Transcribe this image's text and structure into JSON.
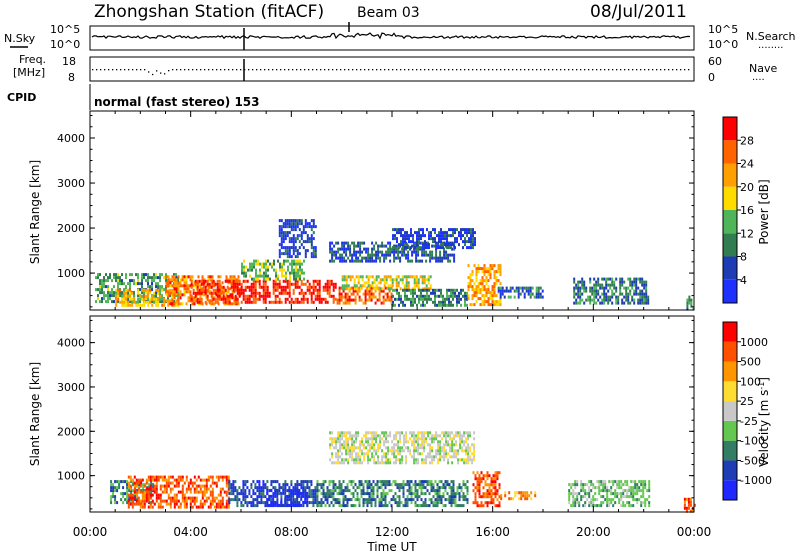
{
  "header": {
    "title": "Zhongshan Station (fitACF)",
    "beam": "Beam 03",
    "date": "08/Jul/2011"
  },
  "noise_panel": {
    "left_label": "N.Sky",
    "right_label": "N.Search",
    "top_tick": "10^5",
    "bottom_tick": "10^0",
    "right_legend": "........"
  },
  "freq_panel": {
    "left_label_1": "Freq.",
    "left_label_2": "[MHz]",
    "left_ticks": [
      "18",
      "8"
    ],
    "right_label": "Nave",
    "right_ticks": [
      "60",
      "0"
    ],
    "right_legend": "...."
  },
  "cpid": {
    "label": "CPID",
    "text": "normal (fast stereo) 153"
  },
  "colors": {
    "power": [
      "#1e32ff",
      "#1e3cb4",
      "#327d50",
      "#50b45a",
      "#ffdc00",
      "#ffa000",
      "#ff6400",
      "#ff0000"
    ],
    "velocity": [
      "#ff0000",
      "#ff5000",
      "#ff9600",
      "#ffdc32",
      "#c8c8c8",
      "#64c850",
      "#327d64",
      "#1e3cb4",
      "#1e28ff"
    ],
    "ground_scatter": "#c8c8c8"
  },
  "chart_data": [
    {
      "type": "heatmap",
      "name": "Power",
      "xlabel": "",
      "ylabel": "Slant Range [km]",
      "x_tick_labels": [
        "00:00",
        "04:00",
        "08:00",
        "12:00",
        "16:00",
        "20:00",
        "00:00"
      ],
      "x_ticks_hours": [
        0,
        4,
        8,
        12,
        16,
        20,
        24
      ],
      "xlim": [
        0,
        24
      ],
      "y_ticks": [
        1000,
        2000,
        3000,
        4000
      ],
      "ylim": [
        180,
        4600
      ],
      "colorbar_label": "Power [dB]",
      "colorbar_ticks": [
        "4",
        "8",
        "12",
        "16",
        "20",
        "24",
        "28"
      ],
      "colorbar_range": [
        0,
        32
      ],
      "regions": [
        {
          "t0": 0.2,
          "t1": 3.5,
          "r0": 400,
          "r1": 1000,
          "level": 12
        },
        {
          "t0": 1.0,
          "t1": 3.5,
          "r0": 300,
          "r1": 650,
          "level": 20
        },
        {
          "t0": 3.0,
          "t1": 6.0,
          "r0": 300,
          "r1": 950,
          "level": 24
        },
        {
          "t0": 4.0,
          "t1": 9.8,
          "r0": 350,
          "r1": 850,
          "level": 29
        },
        {
          "t0": 6.0,
          "t1": 8.5,
          "r0": 850,
          "r1": 1300,
          "level": 14
        },
        {
          "t0": 9.8,
          "t1": 12.0,
          "r0": 350,
          "r1": 700,
          "level": 26
        },
        {
          "t0": 10.0,
          "t1": 13.5,
          "r0": 650,
          "r1": 950,
          "level": 18
        },
        {
          "t0": 12.0,
          "t1": 15.0,
          "r0": 300,
          "r1": 650,
          "level": 10
        },
        {
          "t0": 15.0,
          "t1": 16.3,
          "r0": 300,
          "r1": 1200,
          "level": 22
        },
        {
          "t0": 9.5,
          "t1": 14.5,
          "r0": 1300,
          "r1": 1700,
          "level": 7
        },
        {
          "t0": 12.0,
          "t1": 15.3,
          "r0": 1600,
          "r1": 2000,
          "level": 5
        },
        {
          "t0": 7.5,
          "t1": 9.0,
          "r0": 1400,
          "r1": 2200,
          "level": 5
        },
        {
          "t0": 16.2,
          "t1": 18.0,
          "r0": 500,
          "r1": 700,
          "level": 8
        },
        {
          "t0": 19.2,
          "t1": 22.2,
          "r0": 350,
          "r1": 900,
          "level": 9
        },
        {
          "t0": 23.7,
          "t1": 24.0,
          "r0": 200,
          "r1": 500,
          "level": 12
        }
      ]
    },
    {
      "type": "heatmap",
      "name": "Velocity",
      "xlabel": "Time UT",
      "ylabel": "Slant Range [km]",
      "x_tick_labels": [
        "00:00",
        "04:00",
        "08:00",
        "12:00",
        "16:00",
        "20:00",
        "00:00"
      ],
      "x_ticks_hours": [
        0,
        4,
        8,
        12,
        16,
        20,
        24
      ],
      "xlim": [
        0,
        24
      ],
      "y_ticks": [
        1000,
        2000,
        3000,
        4000
      ],
      "ylim": [
        180,
        4600
      ],
      "colorbar_label": "Velocity [m s^-1]",
      "colorbar_ticks": [
        "1000",
        "500",
        "100",
        "25",
        "-25",
        "-100",
        "-500",
        "-1000"
      ],
      "regions": [
        {
          "t0": 0.8,
          "t1": 2.5,
          "r0": 400,
          "r1": 900,
          "cls": 6
        },
        {
          "t0": 1.5,
          "t1": 5.5,
          "r0": 300,
          "r1": 1000,
          "cls": 1
        },
        {
          "t0": 5.5,
          "t1": 9.0,
          "r0": 350,
          "r1": 900,
          "cls": 7
        },
        {
          "t0": 7.0,
          "t1": 8.6,
          "r0": 350,
          "r1": 700,
          "cls": 8
        },
        {
          "t0": 9.0,
          "t1": 15.0,
          "r0": 300,
          "r1": 900,
          "cls": 6
        },
        {
          "t0": 9.5,
          "t1": 15.3,
          "r0": 1300,
          "r1": 2000,
          "cls": 4
        },
        {
          "t0": 15.2,
          "t1": 16.3,
          "r0": 300,
          "r1": 1100,
          "cls": 1
        },
        {
          "t0": 16.3,
          "t1": 17.7,
          "r0": 450,
          "r1": 650,
          "cls": 2
        },
        {
          "t0": 19.0,
          "t1": 22.2,
          "r0": 350,
          "r1": 900,
          "cls": 5
        },
        {
          "t0": 23.6,
          "t1": 24.0,
          "r0": 200,
          "r1": 500,
          "cls": 1
        }
      ]
    }
  ]
}
